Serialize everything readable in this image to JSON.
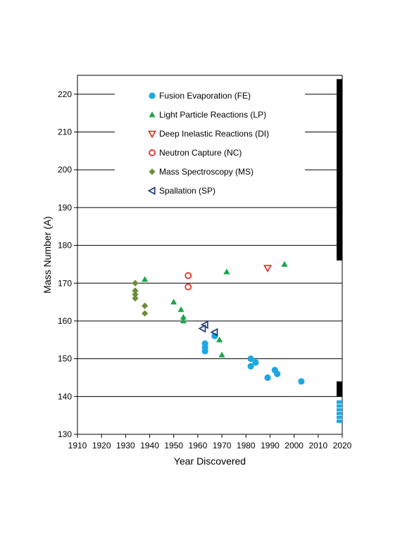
{
  "chart_data": {
    "type": "scatter",
    "title": "",
    "xlabel": "Year Discovered",
    "ylabel": "Mass Number (A)",
    "xlim": [
      1910,
      2020
    ],
    "ylim": [
      130,
      225
    ],
    "x_ticks": [
      1910,
      1920,
      1930,
      1940,
      1950,
      1960,
      1970,
      1980,
      1990,
      2000,
      2010,
      2020
    ],
    "y_ticks": [
      130,
      140,
      150,
      160,
      170,
      180,
      190,
      200,
      210,
      220
    ],
    "grid": "horizontal",
    "legend_position": "top-left inside plot",
    "series": [
      {
        "name": "Fusion Evaporation (FE)",
        "marker": "circle",
        "color": "#1ea7e1",
        "points": [
          [
            1963,
            152
          ],
          [
            1963,
            153
          ],
          [
            1963,
            154
          ],
          [
            1967,
            156
          ],
          [
            1982,
            148
          ],
          [
            1982,
            150
          ],
          [
            1984,
            149
          ],
          [
            1989,
            145
          ],
          [
            1992,
            147
          ],
          [
            1993,
            146
          ],
          [
            2003,
            144
          ]
        ]
      },
      {
        "name": "Light Particle Reactions (LP)",
        "marker": "triangle",
        "color": "#1aa64a",
        "points": [
          [
            1938,
            171
          ],
          [
            1950,
            165
          ],
          [
            1953,
            163
          ],
          [
            1954,
            161
          ],
          [
            1954,
            160
          ],
          [
            1969,
            155
          ],
          [
            1970,
            151
          ],
          [
            1972,
            173
          ],
          [
            1996,
            175
          ]
        ]
      },
      {
        "name": "Deep Inelastic Reactions (DI)",
        "marker": "triangle-down-open",
        "color": "#e32219",
        "points": [
          [
            1989,
            174
          ]
        ]
      },
      {
        "name": "Neutron Capture (NC)",
        "marker": "circle-open",
        "color": "#e32219",
        "points": [
          [
            1956,
            172
          ],
          [
            1956,
            169
          ]
        ]
      },
      {
        "name": "Mass Spectroscopy (MS)",
        "marker": "diamond",
        "color": "#6b8e3a",
        "points": [
          [
            1934,
            170
          ],
          [
            1934,
            168
          ],
          [
            1934,
            167
          ],
          [
            1934,
            166
          ],
          [
            1938,
            164
          ],
          [
            1938,
            162
          ]
        ]
      },
      {
        "name": "Spallation (SP)",
        "marker": "triangle-left-open",
        "color": "#1f3a7a",
        "points": [
          [
            1962,
            158
          ],
          [
            1963,
            159
          ],
          [
            1967,
            157
          ]
        ]
      }
    ],
    "side_bars": [
      {
        "color": "#000000",
        "from": 176,
        "to": 224
      },
      {
        "color": "#000000",
        "from": 140,
        "to": 144
      },
      {
        "color": "#1ea7e1",
        "from": 133,
        "to": 139
      }
    ]
  }
}
